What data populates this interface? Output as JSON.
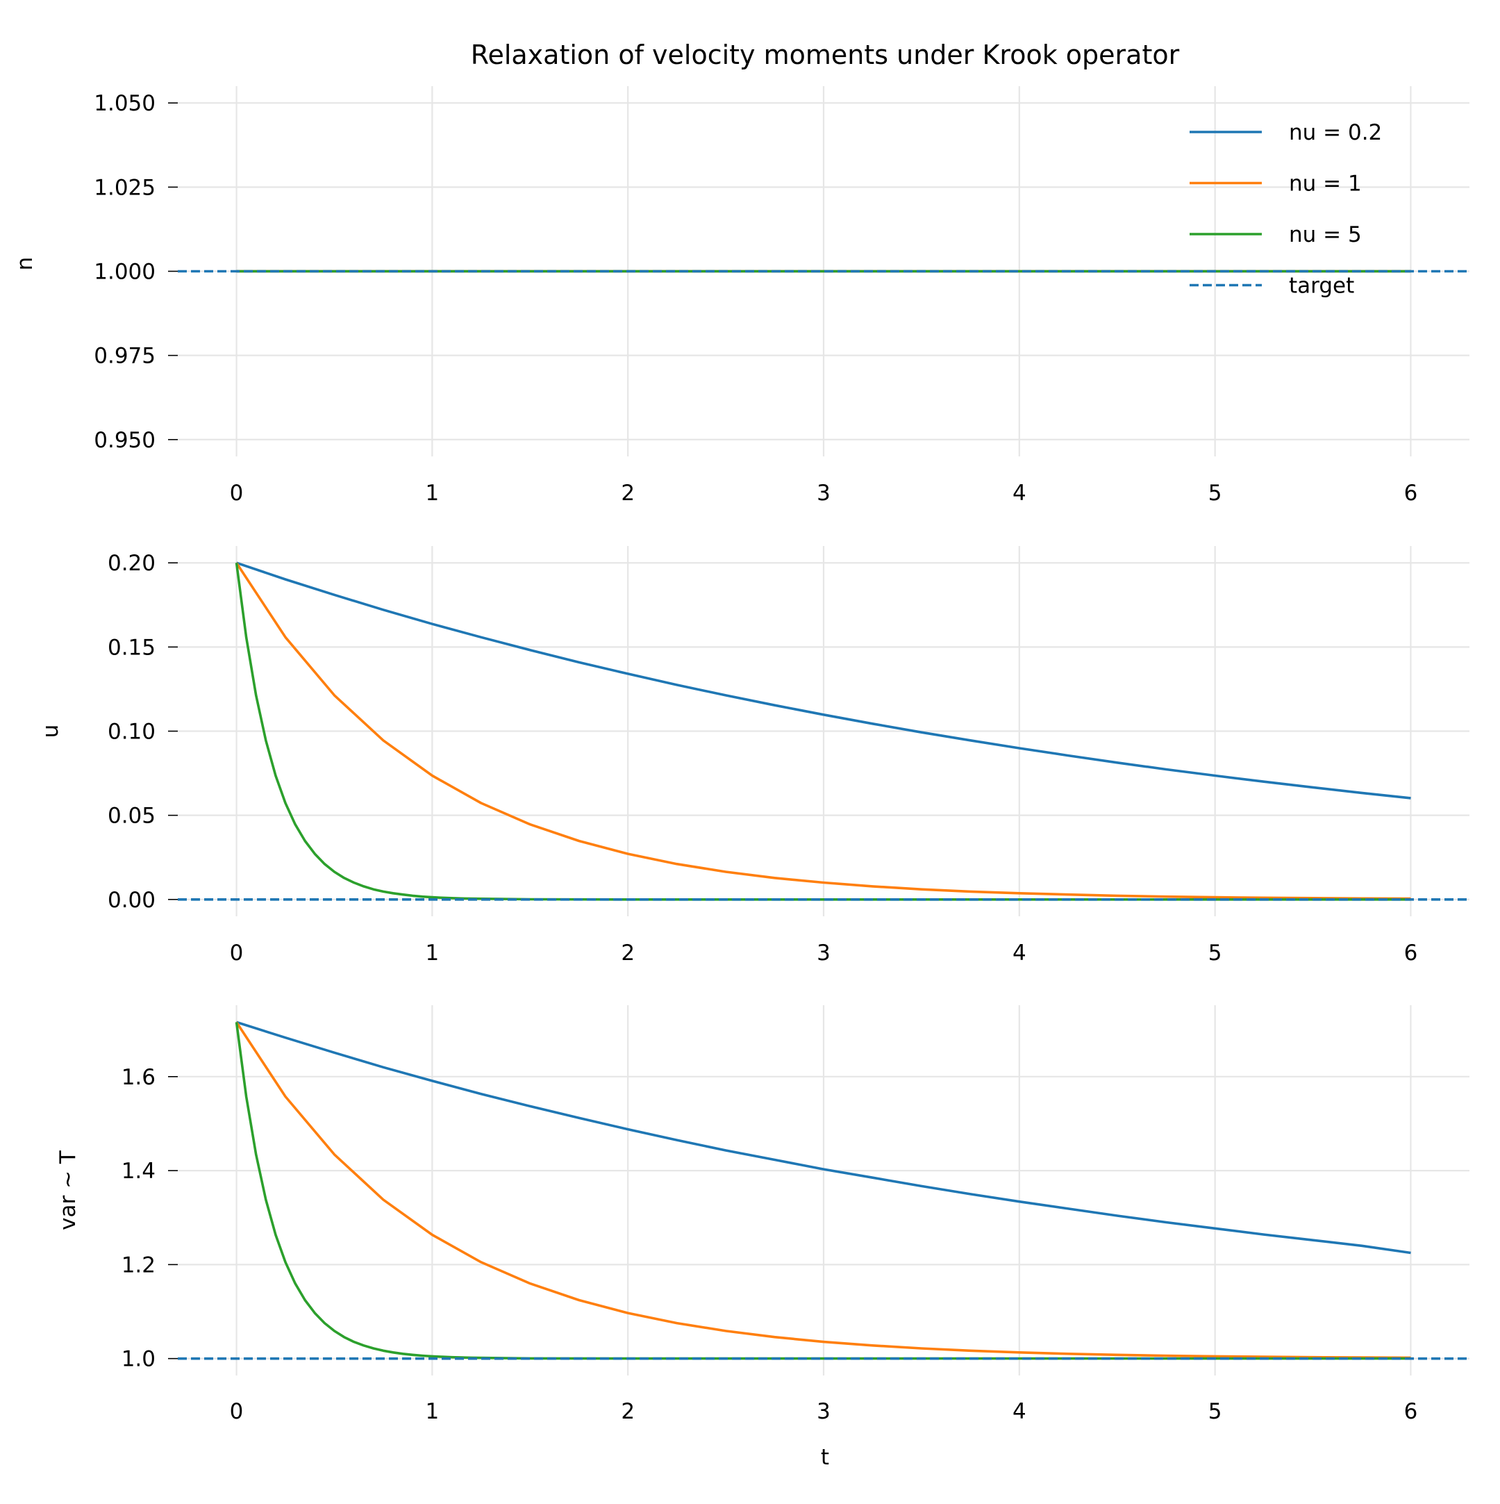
{
  "title": "Relaxation of velocity moments under Krook operator",
  "colors": {
    "nu_0.2": "#1f77b4",
    "nu_1": "#ff7f0e",
    "nu_5": "#2ca02c",
    "target": "#1f77b4",
    "grid": "#e6e6e6"
  },
  "legend": {
    "placement": "upper-right",
    "entries": [
      {
        "label": "nu = 0.2",
        "color": "#1f77b4",
        "style": "solid"
      },
      {
        "label": "nu = 1",
        "color": "#ff7f0e",
        "style": "solid"
      },
      {
        "label": "nu = 5",
        "color": "#2ca02c",
        "style": "solid"
      },
      {
        "label": "target",
        "color": "#1f77b4",
        "style": "dashed"
      }
    ]
  },
  "chart_data": [
    {
      "type": "line",
      "ylabel": "n",
      "xlabel": "",
      "xlim": [
        -0.3,
        6.3
      ],
      "ylim": [
        0.945,
        1.055
      ],
      "grid": true,
      "xticks": [
        "0",
        "1",
        "2",
        "3",
        "4",
        "5",
        "6"
      ],
      "yticks": [
        0.95,
        0.975,
        1.0,
        1.025,
        1.05
      ],
      "ytick_labels": [
        "0.950",
        "0.975",
        "1.000",
        "1.025",
        "1.050"
      ],
      "target": 1.0,
      "series": [
        {
          "name": "nu = 0.2",
          "color": "#1f77b4",
          "t": [
            0,
            6
          ],
          "y": [
            1.0,
            1.0
          ]
        },
        {
          "name": "nu = 1",
          "color": "#ff7f0e",
          "t": [
            0,
            6
          ],
          "y": [
            1.0,
            1.0
          ]
        },
        {
          "name": "nu = 5",
          "color": "#2ca02c",
          "t": [
            0,
            6
          ],
          "y": [
            1.0,
            1.0
          ]
        }
      ]
    },
    {
      "type": "line",
      "ylabel": "u",
      "xlabel": "",
      "xlim": [
        -0.3,
        6.3
      ],
      "ylim": [
        -0.01,
        0.21
      ],
      "grid": true,
      "xticks": [
        "0",
        "1",
        "2",
        "3",
        "4",
        "5",
        "6"
      ],
      "yticks": [
        0,
        0.05,
        0.1,
        0.15,
        0.2
      ],
      "ytick_labels": [
        "0.00",
        "0.05",
        "0.10",
        "0.15",
        "0.20"
      ],
      "target": 0.0,
      "series": [
        {
          "name": "nu = 0.2",
          "color": "#1f77b4",
          "t": [
            0,
            0.25,
            0.5,
            0.75,
            1,
            1.25,
            1.5,
            1.75,
            2,
            2.25,
            2.5,
            2.75,
            3,
            3.25,
            3.5,
            3.75,
            4,
            4.25,
            4.5,
            4.75,
            5,
            5.25,
            5.5,
            5.75,
            6
          ],
          "y": [
            0.2,
            0.1902,
            0.181,
            0.1721,
            0.1637,
            0.1558,
            0.1482,
            0.1409,
            0.1341,
            0.1275,
            0.1213,
            0.1154,
            0.1098,
            0.1044,
            0.0993,
            0.0945,
            0.0899,
            0.0855,
            0.0813,
            0.0773,
            0.0736,
            0.07,
            0.0666,
            0.0633,
            0.0602
          ]
        },
        {
          "name": "nu = 1",
          "color": "#ff7f0e",
          "t": [
            0,
            0.25,
            0.5,
            0.75,
            1,
            1.25,
            1.5,
            1.75,
            2,
            2.25,
            2.5,
            2.75,
            3,
            3.25,
            3.5,
            3.75,
            4,
            4.25,
            4.5,
            4.75,
            5,
            5.25,
            5.5,
            5.75,
            6
          ],
          "y": [
            0.2,
            0.1558,
            0.1213,
            0.0945,
            0.0736,
            0.0573,
            0.0446,
            0.0348,
            0.0271,
            0.0211,
            0.0164,
            0.0128,
            0.01,
            0.0078,
            0.006,
            0.0047,
            0.0037,
            0.0029,
            0.0022,
            0.0017,
            0.0013,
            0.001,
            0.0008,
            0.0006,
            0.0005
          ]
        },
        {
          "name": "nu = 5",
          "color": "#2ca02c",
          "t": [
            0,
            0.05,
            0.1,
            0.15,
            0.2,
            0.25,
            0.3,
            0.35,
            0.4,
            0.45,
            0.5,
            0.55,
            0.6,
            0.65,
            0.7,
            0.75,
            0.8,
            0.85,
            0.9,
            0.95,
            1,
            1.05,
            1.1,
            1.15,
            1.2,
            1.5,
            2,
            3,
            4,
            5,
            6
          ],
          "y": [
            0.2,
            0.1558,
            0.1213,
            0.0945,
            0.0736,
            0.0573,
            0.0446,
            0.0348,
            0.0271,
            0.0211,
            0.0164,
            0.0128,
            0.01,
            0.0078,
            0.006,
            0.0047,
            0.0037,
            0.0029,
            0.0022,
            0.0017,
            0.0013,
            0.001,
            0.0008,
            0.0006,
            0.0005,
            0.0001,
            0,
            0,
            0,
            0,
            0
          ]
        }
      ]
    },
    {
      "type": "line",
      "ylabel": "var ~ T",
      "xlabel": "t",
      "xlim": [
        -0.3,
        6.3
      ],
      "ylim": [
        0.964,
        1.752
      ],
      "grid": true,
      "xticks": [
        "0",
        "1",
        "2",
        "3",
        "4",
        "5",
        "6"
      ],
      "yticks": [
        1.0,
        1.2,
        1.4,
        1.6
      ],
      "ytick_labels": [
        "1.0",
        "1.2",
        "1.4",
        "1.6"
      ],
      "target": 1.0,
      "series": [
        {
          "name": "nu = 0.2",
          "color": "#1f77b4",
          "t": [
            0,
            0.25,
            0.5,
            0.75,
            1,
            1.25,
            1.5,
            1.75,
            2,
            2.25,
            2.5,
            2.75,
            3,
            3.25,
            3.5,
            3.75,
            4,
            4.25,
            4.5,
            4.75,
            5,
            5.25,
            5.5,
            5.75,
            6
          ],
          "y": [
            1.716,
            1.683,
            1.651,
            1.62,
            1.591,
            1.563,
            1.537,
            1.512,
            1.488,
            1.465,
            1.443,
            1.423,
            1.403,
            1.385,
            1.367,
            1.35,
            1.334,
            1.319,
            1.304,
            1.29,
            1.277,
            1.264,
            1.252,
            1.24,
            1.225
          ]
        },
        {
          "name": "nu = 1",
          "color": "#ff7f0e",
          "t": [
            0,
            0.25,
            0.5,
            0.75,
            1,
            1.25,
            1.5,
            1.75,
            2,
            2.25,
            2.5,
            2.75,
            3,
            3.25,
            3.5,
            3.75,
            4,
            4.25,
            4.5,
            4.75,
            5,
            5.25,
            5.5,
            5.75,
            6
          ],
          "y": [
            1.716,
            1.5576,
            1.4343,
            1.3382,
            1.2634,
            1.2052,
            1.1598,
            1.1244,
            1.0969,
            1.0755,
            1.0588,
            1.0458,
            1.0356,
            1.0278,
            1.0216,
            1.0168,
            1.0131,
            1.0102,
            1.0079,
            1.0062,
            1.0048,
            1.0037,
            1.0029,
            1.0023,
            1.0018
          ]
        },
        {
          "name": "nu = 5",
          "color": "#2ca02c",
          "t": [
            0,
            0.05,
            0.1,
            0.15,
            0.2,
            0.25,
            0.3,
            0.35,
            0.4,
            0.45,
            0.5,
            0.55,
            0.6,
            0.65,
            0.7,
            0.75,
            0.8,
            0.85,
            0.9,
            0.95,
            1,
            1.05,
            1.1,
            1.15,
            1.2,
            1.5,
            2,
            3,
            4,
            5,
            6
          ],
          "y": [
            1.716,
            1.5576,
            1.4343,
            1.3382,
            1.2634,
            1.2052,
            1.1598,
            1.1244,
            1.0969,
            1.0755,
            1.0588,
            1.0458,
            1.0356,
            1.0278,
            1.0216,
            1.0168,
            1.0131,
            1.0102,
            1.0079,
            1.0062,
            1.0048,
            1.0037,
            1.0029,
            1.0023,
            1.0018,
            1.0004,
            1.0,
            1.0,
            1.0,
            1.0,
            1.0
          ]
        }
      ]
    }
  ]
}
